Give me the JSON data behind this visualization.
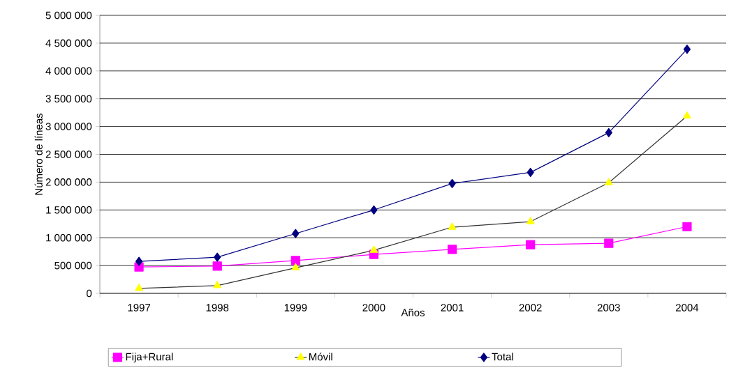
{
  "chart_data": {
    "type": "line",
    "xlabel": "Años",
    "ylabel": "Número de líneas",
    "categories": [
      "1997",
      "1998",
      "1999",
      "2000",
      "2001",
      "2002",
      "2003",
      "2004"
    ],
    "series": [
      {
        "name": "Fija+Rural",
        "color": "#ff00ff",
        "marker": "square",
        "values": [
          475000,
          490000,
          590000,
          700000,
          790000,
          875000,
          900000,
          1200000
        ]
      },
      {
        "name": "Móvil",
        "color": "#ffff00",
        "marker": "triangle",
        "values": [
          90000,
          140000,
          460000,
          775000,
          1190000,
          1290000,
          1990000,
          3190000
        ]
      },
      {
        "name": "Total",
        "color": "#000080",
        "marker": "diamond",
        "values": [
          575000,
          650000,
          1075000,
          1500000,
          1975000,
          2175000,
          2890000,
          4390000
        ]
      }
    ],
    "ylim": [
      0,
      5000000
    ],
    "yticks": [
      {
        "value": 0,
        "label": "0"
      },
      {
        "value": 500000,
        "label": "500 000"
      },
      {
        "value": 1000000,
        "label": "1 000 000"
      },
      {
        "value": 1500000,
        "label": "1 500 000"
      },
      {
        "value": 2000000,
        "label": "2 000 000"
      },
      {
        "value": 2500000,
        "label": "2 500 000"
      },
      {
        "value": 3000000,
        "label": "3 000 000"
      },
      {
        "value": 3500000,
        "label": "3 500 000"
      },
      {
        "value": 4000000,
        "label": "4 000 000"
      },
      {
        "value": 4500000,
        "label": "4 500 000"
      },
      {
        "value": 5000000,
        "label": "5 000 000"
      }
    ],
    "grid": "y",
    "legend": "bottom",
    "line_style": "solid"
  }
}
